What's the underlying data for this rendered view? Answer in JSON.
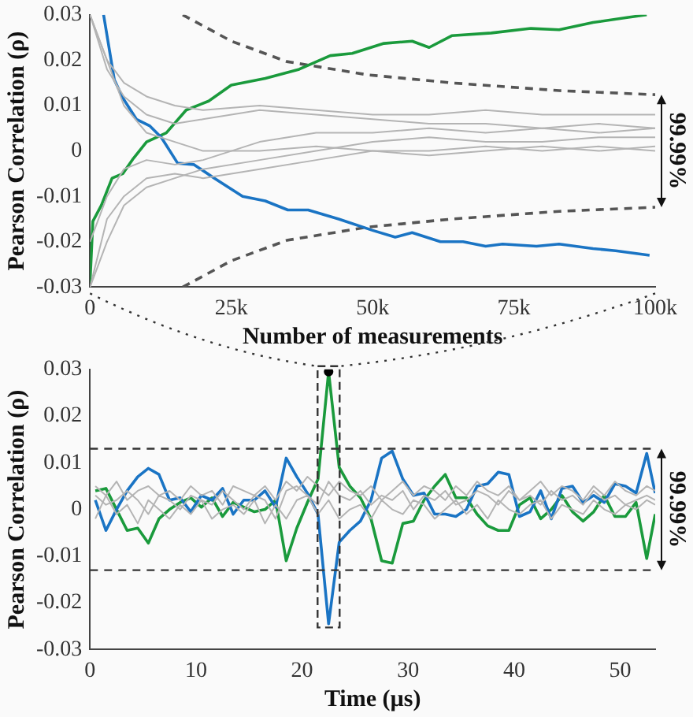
{
  "chart_data": [
    {
      "type": "line",
      "xlabel": "Number of measurements",
      "ylabel": "Pearson Correlation (ρ)",
      "annotations": [
        "99.99%"
      ],
      "grid": false,
      "legend": false,
      "marker": "none",
      "xlim": [
        0,
        100000
      ],
      "xticks": [
        0,
        {
          "value": 25000,
          "label": "25k"
        },
        {
          "value": 50000,
          "label": "50k"
        },
        {
          "value": 75000,
          "label": "75k"
        },
        {
          "value": 100000,
          "label": "100k"
        }
      ],
      "ylim": [
        -0.03,
        0.03
      ],
      "yticks": [
        -0.03,
        -0.02,
        -0.01,
        0,
        0.01,
        0.02,
        0.03
      ],
      "x": [
        0,
        3000,
        6000,
        10000,
        15000,
        20000,
        30000,
        40000,
        50000,
        60000,
        70000,
        80000,
        90000,
        100000
      ],
      "series": [
        {
          "color": "#b4b4b4",
          "values": [
            0.03,
            0.02,
            0.015,
            0.012,
            0.01,
            0.009,
            0.01,
            0.009,
            0.008,
            0.008,
            0.009,
            0.008,
            0.008,
            0.008
          ]
        },
        {
          "color": "#b4b4b4",
          "values": [
            0.03,
            0.018,
            0.012,
            0.008,
            0.006,
            0.007,
            0.009,
            0.008,
            0.007,
            0.006,
            0.006,
            0.005,
            0.006,
            0.005
          ]
        },
        {
          "color": "#b4b4b4",
          "values": [
            -0.03,
            -0.02,
            -0.012,
            -0.008,
            -0.006,
            -0.004,
            -0.002,
            0,
            0.002,
            0.003,
            0.002,
            0.002,
            0.003,
            0.003
          ]
        },
        {
          "color": "#b4b4b4",
          "values": [
            -0.03,
            -0.015,
            -0.01,
            -0.006,
            -0.005,
            -0.006,
            -0.004,
            -0.002,
            0,
            0,
            0.001,
            0,
            0.001,
            0
          ]
        },
        {
          "color": "#b4b4b4",
          "values": [
            0.03,
            0.02,
            0.01,
            0.004,
            0.002,
            0,
            0,
            0.001,
            0,
            -0.001,
            0,
            0.001,
            0,
            0.001
          ]
        },
        {
          "color": "#b4b4b4",
          "values": [
            -0.02,
            -0.01,
            -0.004,
            -0.002,
            -0.003,
            -0.002,
            0.002,
            0.004,
            0.004,
            0.005,
            0.004,
            0.005,
            0.004,
            0.005
          ]
        },
        {
          "color": "#1a74c4",
          "x": [
            2400,
            4300,
            5800,
            8200,
            10600,
            12600,
            15500,
            18400,
            22000,
            27000,
            31000,
            35000,
            38600,
            44000,
            50000,
            54000,
            57000,
            62000,
            66000,
            70000,
            73000,
            79000,
            83000,
            89000,
            93000,
            99000
          ],
          "values": [
            0.03,
            0.0157,
            0.0117,
            0.007,
            0.0055,
            0.003,
            -0.0027,
            -0.003,
            -0.006,
            -0.01,
            -0.011,
            -0.013,
            -0.013,
            -0.015,
            -0.0175,
            -0.019,
            -0.018,
            -0.02,
            -0.02,
            -0.021,
            -0.0205,
            -0.021,
            -0.0205,
            -0.0215,
            -0.022,
            -0.023
          ]
        },
        {
          "color": "#1a9a3c",
          "x": [
            0,
            500,
            2000,
            3900,
            5800,
            7700,
            10000,
            13500,
            17000,
            21000,
            25000,
            31000,
            37000,
            42500,
            46400,
            52000,
            57000,
            60000,
            64000,
            71000,
            78000,
            83000,
            89000,
            95000,
            98500
          ],
          "values": [
            -0.029,
            -0.0155,
            -0.012,
            -0.006,
            -0.005,
            -0.0016,
            0.002,
            0.004,
            0.009,
            0.011,
            0.0145,
            0.016,
            0.018,
            0.021,
            0.0215,
            0.0237,
            0.0242,
            0.0228,
            0.0254,
            0.026,
            0.027,
            0.0267,
            0.0283,
            0.0294,
            0.03
          ]
        },
        {
          "color": "#555555",
          "line_style": "dashed",
          "x": [
            16400,
            25000,
            34800,
            49000,
            64000,
            83000,
            100000
          ],
          "values": [
            0.03,
            0.0242,
            0.0197,
            0.0168,
            0.015,
            0.0133,
            0.0124
          ]
        },
        {
          "color": "#555555",
          "line_style": "dashed",
          "x": [
            16400,
            25000,
            34800,
            49000,
            64000,
            83000,
            100000
          ],
          "values": [
            -0.03,
            -0.0242,
            -0.0197,
            -0.0168,
            -0.015,
            -0.0133,
            -0.0124
          ]
        }
      ]
    },
    {
      "type": "line",
      "xlabel": "Time (µs)",
      "ylabel": "Pearson Correlation (ρ)",
      "annotations": [
        "99.99%"
      ],
      "grid": false,
      "legend": false,
      "marker": "none",
      "xlim": [
        0,
        53.3
      ],
      "xticks": [
        0,
        10,
        20,
        30,
        40,
        50
      ],
      "ylim": [
        -0.03,
        0.03
      ],
      "yticks": [
        -0.03,
        -0.02,
        -0.01,
        0,
        0.01,
        0.02,
        0.03
      ],
      "ref_lines": [
        {
          "axis": "y",
          "value": 0.013,
          "color": "#333333",
          "line_style": "dashed"
        },
        {
          "axis": "y",
          "value": -0.013,
          "color": "#333333",
          "line_style": "dashed"
        }
      ],
      "x": [
        0.5,
        1.5,
        2.5,
        3.5,
        4.5,
        5.5,
        6.5,
        7.5,
        8.5,
        9.5,
        10.5,
        11.5,
        12.5,
        13.5,
        14.5,
        15.5,
        16.5,
        17.5,
        18.5,
        19.5,
        20.5,
        21.5,
        22.5,
        23.5,
        24.5,
        25.5,
        26.5,
        27.5,
        28.5,
        29.5,
        30.5,
        31.5,
        32.5,
        33.5,
        34.5,
        35.5,
        36.5,
        37.5,
        38.5,
        39.5,
        40.5,
        41.5,
        42.5,
        43.5,
        44.5,
        45.5,
        46.5,
        47.5,
        48.5,
        49.5,
        50.5,
        51.5,
        52.5,
        53.3
      ],
      "series": [
        {
          "color": "#b4b4b4",
          "values": [
            0.003,
            0.001,
            0.002,
            0.004,
            0.002,
            -0.001,
            0.003,
            0.002,
            0,
            0.003,
            0.002,
            0.001,
            0.004,
            0.002,
            0,
            0.003,
            0.002,
            -0.002,
            0.004,
            0.005,
            0.003,
            0.001,
            0.006,
            0.003,
            0.002,
            0.004,
            0.001,
            0.003,
            0.002,
            0.004,
            0,
            0.003,
            0.002,
            0.004,
            0.001,
            0.002,
            0.004,
            0.003,
            0.001,
            0.004,
            0.002,
            0.003,
            0.001,
            0.004,
            0.002,
            0.003,
            0.001,
            0.004,
            0.002,
            0.003,
            0.001,
            0.002,
            0.003,
            0.002
          ]
        },
        {
          "color": "#b4b4b4",
          "values": [
            -0.002,
            0.003,
            -0.001,
            0.001,
            -0.003,
            0.002,
            0,
            -0.002,
            0.001,
            -0.001,
            0.002,
            -0.002,
            0,
            0.001,
            -0.001,
            0.002,
            -0.003,
            0.001,
            -0.002,
            0.002,
            0.003,
            -0.001,
            0.002,
            -0.002,
            0,
            0.001,
            -0.002,
            0.002,
            0,
            -0.001,
            0.002,
            0.001,
            -0.002,
            0,
            0.002,
            -0.001,
            0.001,
            -0.002,
            0.002,
            0,
            -0.001,
            0.001,
            0.002,
            -0.002,
            0.001,
            0,
            -0.001,
            0.002,
            0,
            -0.001,
            0.001,
            0,
            0.002,
            0.001
          ]
        },
        {
          "color": "#b4b4b4",
          "values": [
            0.005,
            0.003,
            0.006,
            0.002,
            0.004,
            0.005,
            0.003,
            0.004,
            0.002,
            0.005,
            0.003,
            0.004,
            0.001,
            0.005,
            0.004,
            0.003,
            0.005,
            0.002,
            0.006,
            0.004,
            0.007,
            0.005,
            0.003,
            0.006,
            0.004,
            0.003,
            0.005,
            0.002,
            0.004,
            0.006,
            0.003,
            0.005,
            0.004,
            0.002,
            0.005,
            0.003,
            0.006,
            0.004,
            0.003,
            0.005,
            0.002,
            0.004,
            0.006,
            0.003,
            0.005,
            0.004,
            0.002,
            0.005,
            0.003,
            0.006,
            0.004,
            0.003,
            0.005,
            0.004
          ]
        },
        {
          "color": "#1a74c4",
          "values": [
            0.002,
            -0.0045,
            0,
            0.004,
            0.007,
            0.0088,
            0.0075,
            0.002,
            0.0025,
            -0.0005,
            0.003,
            0.002,
            0.0045,
            -0.001,
            0.002,
            0.002,
            0.004,
            0.0005,
            0.011,
            0.007,
            0.0035,
            -0.001,
            -0.0245,
            -0.007,
            -0.0045,
            -0.0025,
            0.002,
            0.011,
            0.0125,
            0.0065,
            0.003,
            0.0035,
            -0.001,
            -0.001,
            -0.0015,
            0,
            0.005,
            0.0055,
            0.008,
            0.0075,
            -0.0015,
            -0.0005,
            0.004,
            -0.002,
            0.0045,
            0.005,
            0.0015,
            0.003,
            0.0015,
            0.0055,
            0.005,
            0.0035,
            0.012,
            0.0035
          ]
        },
        {
          "color": "#1a9a3c",
          "values": [
            0.004,
            0.0045,
            0,
            -0.0045,
            -0.004,
            -0.0072,
            -0.002,
            0,
            0.0015,
            0.0025,
            0.0005,
            0.0025,
            -0.0015,
            0.0015,
            0.0005,
            -0.0005,
            0,
            0.002,
            -0.011,
            -0.004,
            0.0015,
            0.0065,
            0.0295,
            0.009,
            0.005,
            0.0025,
            -0.002,
            -0.011,
            -0.0115,
            -0.003,
            -0.0025,
            0.002,
            0.005,
            0.0075,
            0.0025,
            0.0025,
            -0.001,
            -0.0035,
            -0.0045,
            -0.0045,
            0.001,
            0.0025,
            -0.002,
            0,
            0.003,
            -0.0005,
            -0.0025,
            -0.0005,
            0.003,
            -0.0015,
            -0.0015,
            0.0015,
            -0.0105,
            -0.001
          ]
        },
        {
          "type": "scatter",
          "marker": "circle",
          "color": "#000000",
          "x": [
            22.5
          ],
          "values": [
            0.0295
          ]
        }
      ]
    }
  ]
}
